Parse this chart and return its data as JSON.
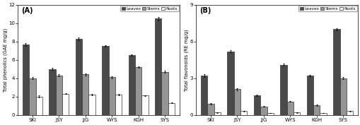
{
  "categories": [
    "SKI",
    "JSY",
    "JJG",
    "WYS",
    "KGH",
    "SYS"
  ],
  "A": {
    "title": "(A)",
    "ylabel": "Total phenolics (GAE mg/g)",
    "ylim": [
      0,
      12
    ],
    "yticks": [
      0,
      2,
      4,
      6,
      8,
      10,
      12
    ],
    "leaves": [
      7.7,
      5.0,
      8.3,
      7.5,
      6.5,
      10.5
    ],
    "stems": [
      4.0,
      4.3,
      4.4,
      4.1,
      5.2,
      4.7
    ],
    "roots": [
      2.0,
      2.3,
      2.2,
      2.2,
      2.1,
      1.3
    ],
    "leaves_err": [
      0.15,
      0.1,
      0.15,
      0.1,
      0.1,
      0.2
    ],
    "stems_err": [
      0.1,
      0.1,
      0.1,
      0.1,
      0.1,
      0.1
    ],
    "roots_err": [
      0.1,
      0.05,
      0.05,
      0.05,
      0.05,
      0.05
    ]
  },
  "B": {
    "title": "(B)",
    "ylabel": "Total flavonoids (RE mg/g)",
    "ylim": [
      0,
      9
    ],
    "yticks": [
      0,
      3,
      6,
      9
    ],
    "leaves": [
      3.2,
      5.2,
      1.6,
      4.1,
      3.2,
      7.0
    ],
    "stems": [
      0.9,
      2.1,
      0.7,
      1.1,
      0.8,
      3.0
    ],
    "roots": [
      0.2,
      0.3,
      0.15,
      0.2,
      0.15,
      0.3
    ],
    "leaves_err": [
      0.1,
      0.1,
      0.05,
      0.1,
      0.05,
      0.1
    ],
    "stems_err": [
      0.05,
      0.1,
      0.05,
      0.05,
      0.05,
      0.1
    ],
    "roots_err": [
      0.02,
      0.02,
      0.02,
      0.02,
      0.02,
      0.02
    ]
  },
  "colors": {
    "leaves": "#4a4a4a",
    "stems": "#959595",
    "roots": "#ffffff"
  },
  "edgecolor": "#333333",
  "bar_width": 0.25,
  "legend_labels": [
    "Leaves",
    "Stems",
    "Roots"
  ]
}
